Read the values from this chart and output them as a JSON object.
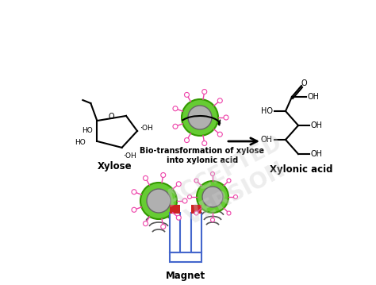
{
  "background_color": "#ffffff",
  "xylose_label": "Xylose",
  "xylonic_label": "Xylonic acid",
  "bio_transform_label": "Bio-transformation of xylose\ninto xylonic acid",
  "magnet_label": "Magnet",
  "np_core_color": "#b0b0b0",
  "np_shell_color": "#66cc33",
  "np_shell_edge_color": "#339900",
  "np_linker_color": "#ee44aa",
  "magnet_body_color": "#ffffff",
  "magnet_top_color": "#cc2222",
  "magnet_outline_color": "#4466cc",
  "text_color": "#000000",
  "label_fontsize": 8.5,
  "bio_label_fontsize": 7.0,
  "wave_color": "#555555"
}
